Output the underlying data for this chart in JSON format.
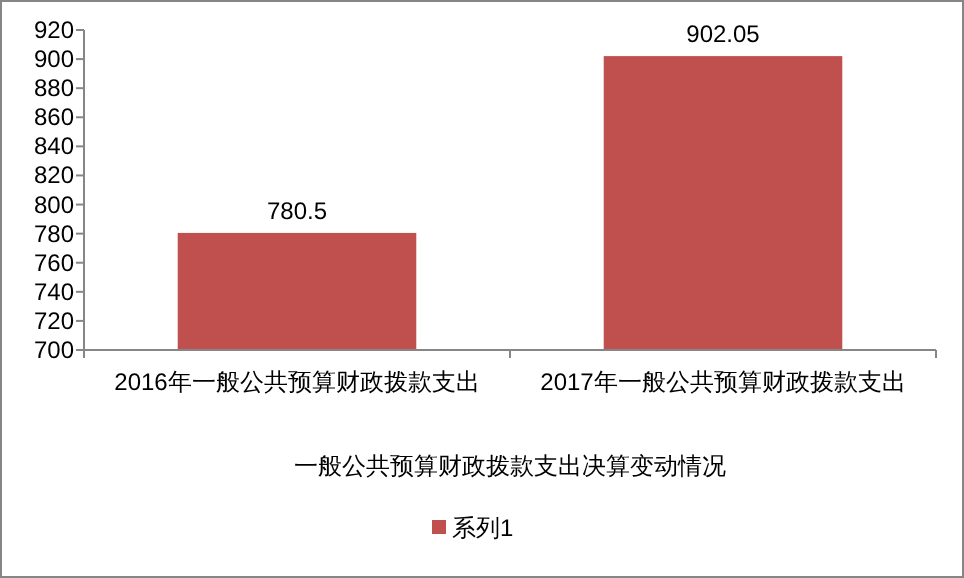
{
  "chart_data": {
    "type": "bar",
    "xlabel": "一般公共预算财政拨款支出决算变动情况",
    "categories": [
      "2016年一般公共预算财政拨款支出",
      "2017年一般公共预算财政拨款支出"
    ],
    "series": [
      {
        "name": "系列1",
        "color": "#c0504d",
        "values": [
          780.5,
          902.05
        ]
      }
    ],
    "ylim": [
      700,
      920
    ],
    "yticks": [
      700,
      720,
      740,
      760,
      780,
      800,
      820,
      840,
      860,
      880,
      900,
      920
    ],
    "data_labels": true,
    "legend": "bottom"
  }
}
